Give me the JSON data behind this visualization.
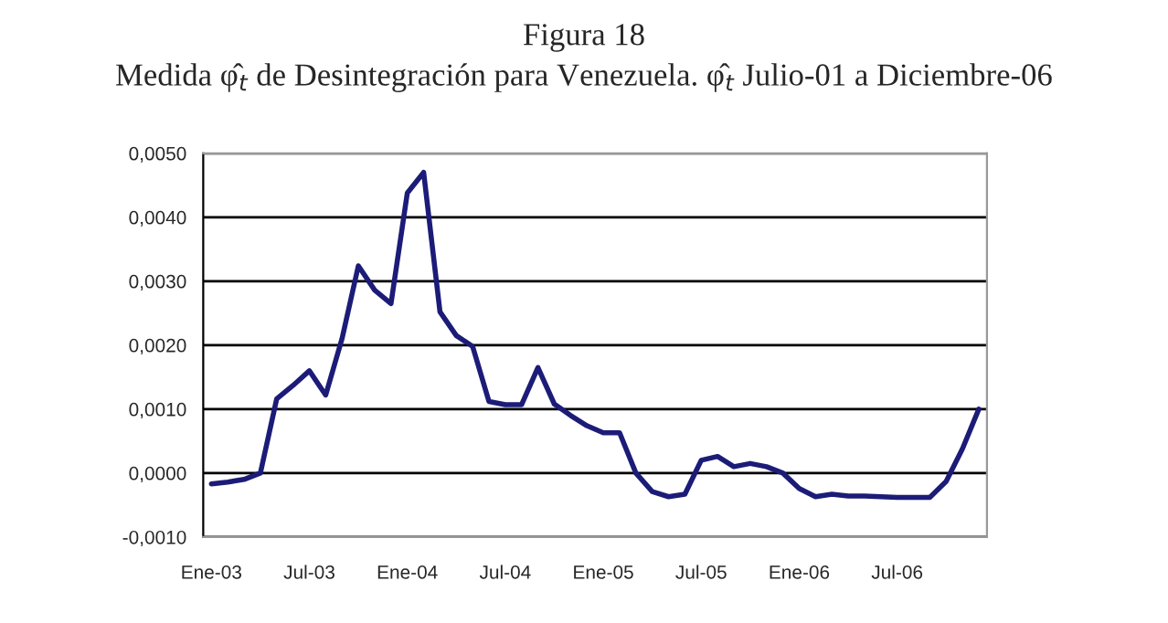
{
  "chart_data": {
    "type": "line",
    "title": "Figura 18",
    "subtitle": "Medida φ̂$_{t}$ de Desintegración para Venezuela. φ̂$_{t}$ Julio-01 a Diciembre-06",
    "categories": [
      "Ene-03",
      null,
      null,
      null,
      null,
      null,
      "Jul-03",
      null,
      null,
      null,
      null,
      null,
      "Ene-04",
      null,
      null,
      null,
      null,
      null,
      "Jul-04",
      null,
      null,
      null,
      null,
      null,
      "Ene-05",
      null,
      null,
      null,
      null,
      null,
      "Jul-05",
      null,
      null,
      null,
      null,
      null,
      "Ene-06",
      null,
      null,
      null,
      null,
      null,
      "Jul-06",
      null,
      null,
      null,
      null,
      null
    ],
    "series": [
      {
        "color": "#1c1c78",
        "values": [
          -0.00017,
          -0.00014,
          -0.0001,
          0.0,
          0.00116,
          0.00137,
          0.0016,
          0.00122,
          0.0021,
          0.00324,
          0.00286,
          0.00265,
          0.00438,
          0.0047,
          0.00252,
          0.00215,
          0.00198,
          0.00112,
          0.00107,
          0.00107,
          0.00165,
          0.00108,
          0.0009,
          0.00074,
          0.00063,
          0.00063,
          0.0,
          -0.00029,
          -0.00037,
          -0.00033,
          0.0002,
          0.00026,
          0.0001,
          0.00015,
          0.0001,
          0.0,
          -0.00024,
          -0.00037,
          -0.00033,
          -0.00036,
          -0.00036,
          -0.00037,
          -0.00038,
          -0.00038,
          -0.00038,
          -0.00013,
          0.00038,
          0.001
        ]
      }
    ],
    "ylim": [
      -0.001,
      0.005
    ],
    "yticks": [
      {
        "value": -0.001,
        "label": "-0,0010"
      },
      {
        "value": 0,
        "label": "0,0000"
      },
      {
        "value": 0.001,
        "label": "0,0010"
      },
      {
        "value": 0.002,
        "label": "0,0020"
      },
      {
        "value": 0.003,
        "label": "0,0030"
      },
      {
        "value": 0.004,
        "label": "0,0040"
      },
      {
        "value": 0.005,
        "label": "0,0050"
      }
    ],
    "grid": "y",
    "marker": "none",
    "line_style": "solid"
  }
}
